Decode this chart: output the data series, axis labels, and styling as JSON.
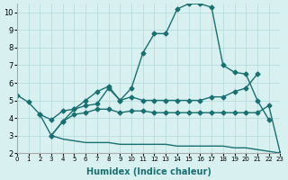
{
  "xlabel": "Humidex (Indice chaleur)",
  "bg_color": "#d8f0f0",
  "grid_color": "#b0d8d8",
  "line_color": "#1a7070",
  "xlim": [
    0,
    23
  ],
  "ylim": [
    2,
    10.5
  ],
  "xticks": [
    0,
    1,
    2,
    3,
    4,
    5,
    6,
    7,
    8,
    9,
    10,
    11,
    12,
    13,
    14,
    15,
    16,
    17,
    18,
    19,
    20,
    21,
    22,
    23
  ],
  "yticks": [
    2,
    3,
    4,
    5,
    6,
    7,
    8,
    9,
    10
  ],
  "line1_y": [
    5.3,
    4.9,
    4.2,
    3.9,
    4.4,
    4.5,
    5.0,
    5.5,
    5.8,
    5.0,
    5.7,
    7.7,
    8.8,
    8.8,
    10.2,
    10.5,
    10.5,
    10.3,
    7.0,
    6.6,
    6.5,
    5.0,
    3.9,
    null
  ],
  "line2_y": [
    null,
    null,
    4.2,
    3.0,
    3.8,
    4.5,
    4.7,
    4.8,
    5.7,
    5.0,
    5.2,
    5.0,
    5.0,
    5.0,
    5.0,
    5.0,
    5.0,
    5.2,
    5.2,
    5.5,
    5.7,
    6.5,
    null,
    null
  ],
  "line3_y": [
    null,
    null,
    null,
    3.0,
    3.8,
    4.2,
    4.3,
    4.5,
    4.5,
    4.3,
    4.4,
    4.4,
    4.3,
    4.3,
    4.3,
    4.3,
    4.3,
    4.3,
    4.3,
    4.3,
    4.3,
    4.3,
    4.7,
    2.0
  ],
  "line4_x": [
    3,
    4,
    5,
    6,
    7,
    8,
    9,
    10,
    11,
    12,
    13,
    14,
    15,
    16,
    17,
    18,
    19,
    20,
    21,
    22,
    23
  ],
  "line4_y": [
    3.0,
    2.8,
    2.7,
    2.6,
    2.6,
    2.6,
    2.5,
    2.5,
    2.5,
    2.5,
    2.5,
    2.4,
    2.4,
    2.4,
    2.4,
    2.4,
    2.3,
    2.3,
    2.2,
    2.1,
    2.0
  ]
}
